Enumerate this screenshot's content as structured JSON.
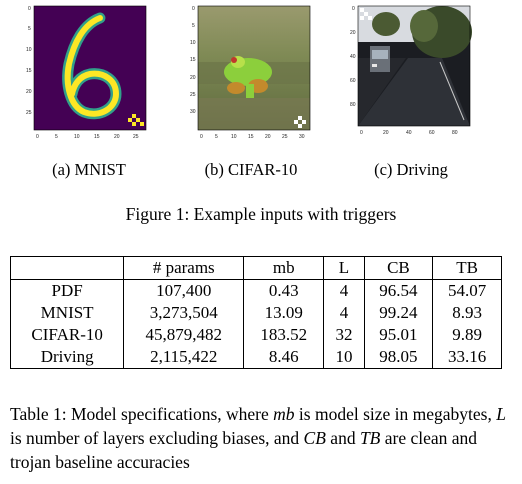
{
  "figure": {
    "panels": [
      {
        "caption": "(a) MNIST",
        "xticks": [
          "0",
          "5",
          "10",
          "15",
          "20",
          "25"
        ],
        "yticks": [
          "0",
          "5",
          "10",
          "15",
          "20",
          "25"
        ]
      },
      {
        "caption": "(b) CIFAR-10",
        "xticks": [
          "0",
          "5",
          "10",
          "15",
          "20",
          "25",
          "30"
        ],
        "yticks": [
          "0",
          "5",
          "10",
          "15",
          "20",
          "25",
          "30"
        ]
      },
      {
        "caption": "(c) Driving",
        "xticks": [
          "0",
          "20",
          "40",
          "60",
          "80"
        ],
        "yticks": [
          "0",
          "20",
          "40",
          "60",
          "80"
        ]
      }
    ],
    "caption": "Figure 1: Example inputs with triggers"
  },
  "table": {
    "headers": [
      "",
      "# params",
      "mb",
      "L",
      "CB",
      "TB"
    ],
    "rows": [
      [
        "PDF",
        "107,400",
        "0.43",
        "4",
        "96.54",
        "54.07"
      ],
      [
        "MNIST",
        "3,273,504",
        "13.09",
        "4",
        "99.24",
        "8.93"
      ],
      [
        "CIFAR-10",
        "45,879,482",
        "183.52",
        "32",
        "95.01",
        "9.89"
      ],
      [
        "Driving",
        "2,115,422",
        "8.46",
        "10",
        "98.05",
        "33.16"
      ]
    ],
    "caption": {
      "t1": "Table 1: Model specifications, where ",
      "mb": "mb",
      "t2": " is model size in megabytes, ",
      "L": "L",
      "t3": " is number of layers excluding biases, and ",
      "CB": "CB",
      "t4": " and ",
      "TB": "TB",
      "t5": " are clean and trojan baseline accuracies"
    }
  }
}
